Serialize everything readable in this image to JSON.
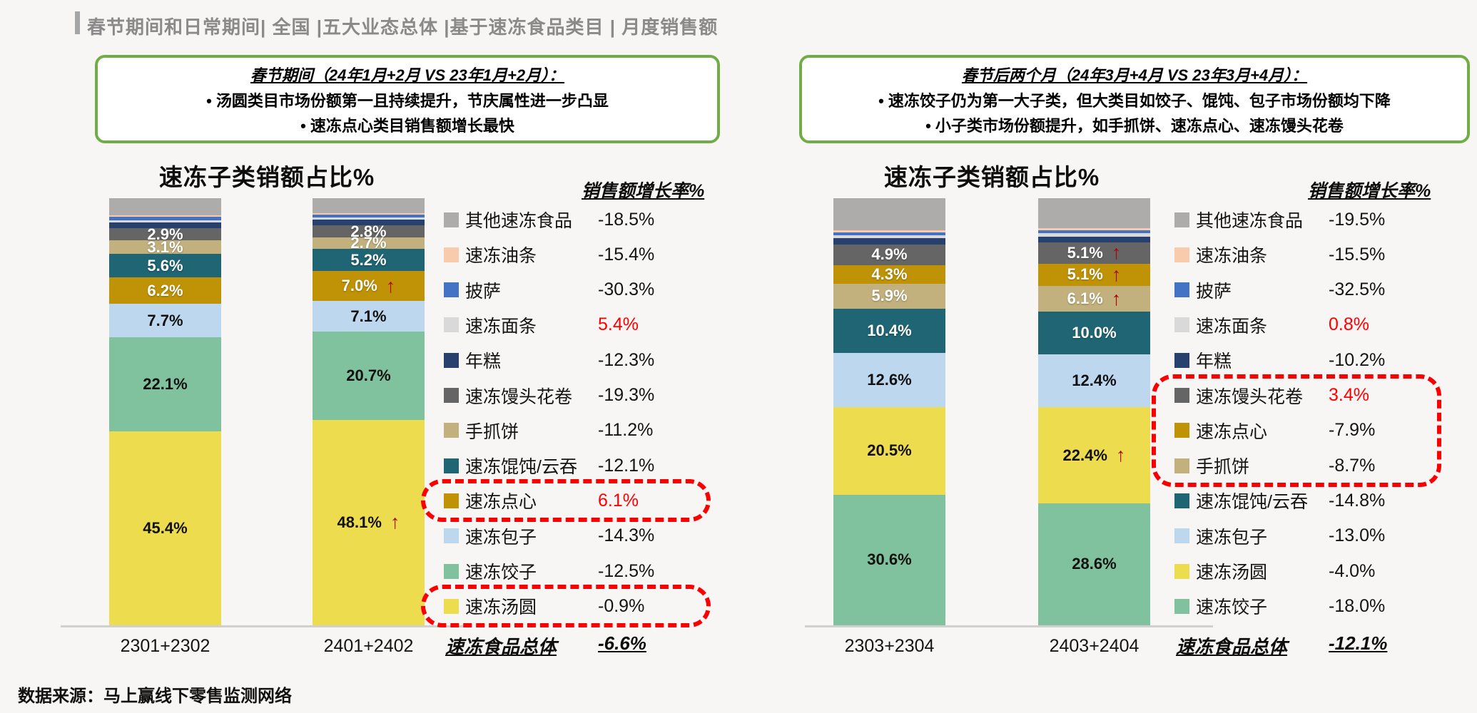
{
  "header": {
    "title": "春节期间和日常期间| 全国 |五大业态总体 |基于速冻食品类目 | 月度销售额",
    "accent_color": "#a6a6a6"
  },
  "insight_boxes": [
    {
      "title": "春节期间（24年1月+2月 VS 23年1月+2月）：",
      "bullets": [
        "汤圆类目市场份额第一且持续提升，节庆属性进一步凸显",
        "速冻点心类目销售额增长最快"
      ]
    },
    {
      "title": "春节后两个月（24年3月+4月 VS 23年3月+4月）：",
      "bullets": [
        "速冻饺子仍为第一大子类，但大类目如饺子、馄饨、包子市场份额均下降",
        "小子类市场份额提升，如手抓饼、速冻点心、速冻馒头花卷"
      ]
    }
  ],
  "colors": {
    "background": "#f7f6f4",
    "green_border": "#70ad47",
    "highlight_red": "#fb0000",
    "arrow_red": "#b00000",
    "positive_text_red": "#ff0000",
    "axis_line": "#d2cfcf",
    "title_gray": "#8b8989"
  },
  "chart_data": [
    {
      "type": "bar",
      "stacked": true,
      "title": "速冻子类销额占比%",
      "growth_header": "销售额增长率%",
      "categories": [
        "2301+2302",
        "2401+2402"
      ],
      "ylim": [
        0,
        100
      ],
      "legend_position": "right",
      "series": [
        {
          "name": "其他速冻食品",
          "color": "#aeabab",
          "values": [
            4.0,
            3.5
          ],
          "growth": "-18.5%"
        },
        {
          "name": "速冻油条",
          "color": "#f8cbad",
          "values": [
            0.3,
            0.3
          ],
          "growth": "-15.4%"
        },
        {
          "name": "披萨",
          "color": "#4472c4",
          "values": [
            0.8,
            0.7
          ],
          "growth": "-30.3%"
        },
        {
          "name": "速冻面条",
          "color": "#d9d9d9",
          "values": [
            0.5,
            0.5
          ],
          "growth": "5.4%",
          "growth_red": true
        },
        {
          "name": "年糕",
          "color": "#27406e",
          "values": [
            1.4,
            1.4
          ],
          "growth": "-12.3%"
        },
        {
          "name": "速冻馒头花卷",
          "color": "#656565",
          "values": [
            2.9,
            2.8
          ],
          "labels": [
            "2.9%",
            "2.8%"
          ],
          "growth": "-19.3%"
        },
        {
          "name": "手抓饼",
          "color": "#c2b17d",
          "values": [
            3.1,
            2.7
          ],
          "labels": [
            "3.1%",
            "2.7%"
          ],
          "growth": "-11.2%"
        },
        {
          "name": "速冻馄饨/云吞",
          "color": "#1f6573",
          "values": [
            5.6,
            5.2
          ],
          "labels": [
            "5.6%",
            "5.2%"
          ],
          "growth": "-12.1%"
        },
        {
          "name": "速冻点心",
          "color": "#c09306",
          "values": [
            6.2,
            7.0
          ],
          "labels": [
            "6.2%",
            "7.0%"
          ],
          "arrows": [
            false,
            true
          ],
          "growth": "6.1%",
          "growth_red": true,
          "highlighted": true
        },
        {
          "name": "速冻包子",
          "color": "#bdd7ee",
          "values": [
            7.7,
            7.1
          ],
          "labels": [
            "7.7%",
            "7.1%"
          ],
          "label_dark": true,
          "growth": "-14.3%"
        },
        {
          "name": "速冻饺子",
          "color": "#80c29d",
          "values": [
            22.1,
            20.7
          ],
          "labels": [
            "22.1%",
            "20.7%"
          ],
          "label_dark": true,
          "growth": "-12.5%"
        },
        {
          "name": "速冻汤圆",
          "color": "#eedc4f",
          "values": [
            45.4,
            48.1
          ],
          "labels": [
            "45.4%",
            "48.1%"
          ],
          "label_dark": true,
          "arrows": [
            false,
            true
          ],
          "growth": "-0.9%",
          "highlighted": true
        }
      ],
      "highlights": [
        {
          "from": 8,
          "to": 8
        },
        {
          "from": 11,
          "to": 11
        }
      ],
      "total": {
        "label": "速冻食品总体",
        "value": "-6.6%"
      }
    },
    {
      "type": "bar",
      "stacked": true,
      "title": "速冻子类销额占比%",
      "growth_header": "销售额增长率%",
      "categories": [
        "2303+2304",
        "2403+2404"
      ],
      "ylim": [
        0,
        100
      ],
      "legend_position": "right",
      "series": [
        {
          "name": "其他速冻食品",
          "color": "#aeabab",
          "values": [
            7.5,
            7.0
          ],
          "growth": "-19.5%"
        },
        {
          "name": "速冻油条",
          "color": "#f8cbad",
          "values": [
            0.5,
            0.5
          ],
          "growth": "-15.5%"
        },
        {
          "name": "披萨",
          "color": "#4472c4",
          "values": [
            0.7,
            0.7
          ],
          "growth": "-32.5%"
        },
        {
          "name": "速冻面条",
          "color": "#d9d9d9",
          "values": [
            0.6,
            0.8
          ],
          "growth": "0.8%",
          "growth_red": true
        },
        {
          "name": "年糕",
          "color": "#27406e",
          "values": [
            1.5,
            1.3
          ],
          "growth": "-10.2%"
        },
        {
          "name": "速冻馒头花卷",
          "color": "#656565",
          "values": [
            4.9,
            5.1
          ],
          "labels": [
            "4.9%",
            "5.1%"
          ],
          "arrows": [
            false,
            true
          ],
          "growth": "3.4%",
          "growth_red": true,
          "highlighted": true
        },
        {
          "name": "速冻点心",
          "color": "#c09306",
          "values": [
            4.3,
            5.1
          ],
          "labels": [
            "4.3%",
            "5.1%"
          ],
          "arrows": [
            false,
            true
          ],
          "growth": "-7.9%",
          "highlighted": true
        },
        {
          "name": "手抓饼",
          "color": "#c2b17d",
          "values": [
            5.9,
            6.1
          ],
          "labels": [
            "5.9%",
            "6.1%"
          ],
          "arrows": [
            false,
            true
          ],
          "growth": "-8.7%",
          "highlighted": true
        },
        {
          "name": "速冻馄饨/云吞",
          "color": "#1f6573",
          "values": [
            10.4,
            10.0
          ],
          "labels": [
            "10.4%",
            "10.0%"
          ],
          "growth": "-14.8%"
        },
        {
          "name": "速冻包子",
          "color": "#bdd7ee",
          "values": [
            12.6,
            12.4
          ],
          "labels": [
            "12.6%",
            "12.4%"
          ],
          "label_dark": true,
          "growth": "-13.0%"
        },
        {
          "name": "速冻汤圆",
          "color": "#eedc4f",
          "values": [
            20.5,
            22.4
          ],
          "labels": [
            "20.5%",
            "22.4%"
          ],
          "label_dark": true,
          "arrows": [
            false,
            true
          ],
          "growth": "-4.0%"
        },
        {
          "name": "速冻饺子",
          "color": "#80c29d",
          "values": [
            30.6,
            28.6
          ],
          "labels": [
            "30.6%",
            "28.6%"
          ],
          "label_dark": true,
          "growth": "-18.0%"
        }
      ],
      "highlights": [
        {
          "from": 5,
          "to": 7
        }
      ],
      "total": {
        "label": "速冻食品总体",
        "value": "-12.1%"
      }
    }
  ],
  "footer": {
    "source": "数据来源：马上赢线下零售监测网络"
  }
}
